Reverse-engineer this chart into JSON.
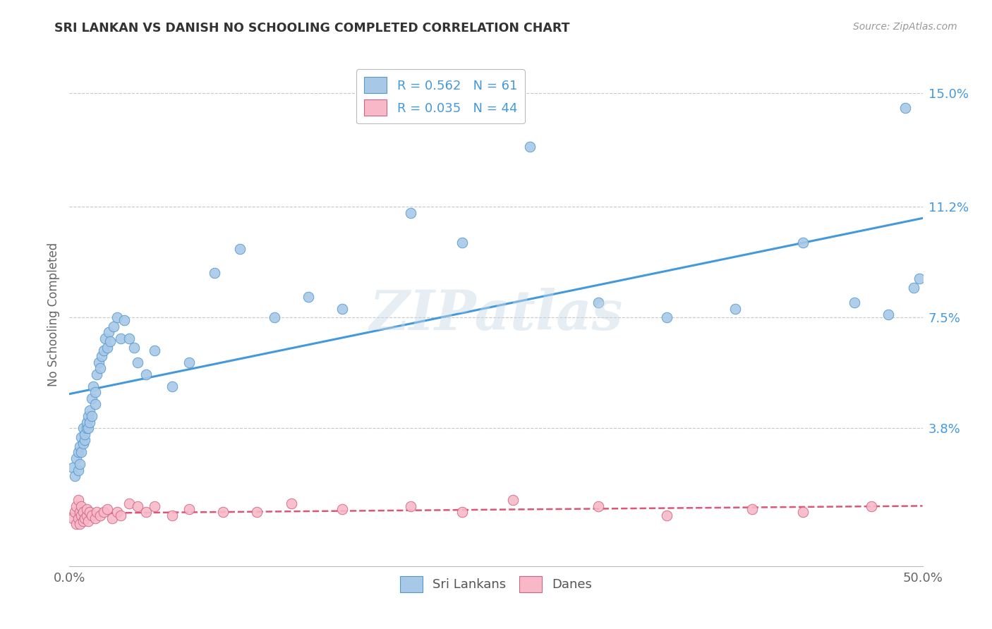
{
  "title": "SRI LANKAN VS DANISH NO SCHOOLING COMPLETED CORRELATION CHART",
  "source": "Source: ZipAtlas.com",
  "ylabel": "No Schooling Completed",
  "xlim": [
    0.0,
    0.5
  ],
  "ylim": [
    -0.008,
    0.16
  ],
  "ytick_positions": [
    0.038,
    0.075,
    0.112,
    0.15
  ],
  "background_color": "#ffffff",
  "grid_color": "#c8c8c8",
  "sri_color": "#a8c8e8",
  "sri_edge": "#5599cc",
  "dan_color": "#f8b8c8",
  "dan_edge": "#cc6688",
  "sri_line_color": "#4499dd",
  "dan_line_color": "#dd5577",
  "legend_sri_R": "0.562",
  "legend_sri_N": "61",
  "legend_dan_R": "0.035",
  "legend_dan_N": "44",
  "watermark": "ZIPatlas",
  "sri_x": [
    0.002,
    0.003,
    0.004,
    0.005,
    0.005,
    0.006,
    0.006,
    0.007,
    0.007,
    0.008,
    0.008,
    0.009,
    0.009,
    0.01,
    0.01,
    0.011,
    0.011,
    0.012,
    0.012,
    0.013,
    0.013,
    0.014,
    0.015,
    0.015,
    0.016,
    0.017,
    0.018,
    0.019,
    0.02,
    0.021,
    0.022,
    0.023,
    0.024,
    0.026,
    0.028,
    0.03,
    0.032,
    0.035,
    0.038,
    0.04,
    0.045,
    0.05,
    0.06,
    0.07,
    0.085,
    0.1,
    0.12,
    0.14,
    0.16,
    0.2,
    0.23,
    0.27,
    0.31,
    0.35,
    0.39,
    0.43,
    0.46,
    0.48,
    0.49,
    0.495,
    0.498
  ],
  "sri_y": [
    0.025,
    0.022,
    0.028,
    0.024,
    0.03,
    0.026,
    0.032,
    0.03,
    0.035,
    0.033,
    0.038,
    0.034,
    0.036,
    0.038,
    0.04,
    0.042,
    0.038,
    0.044,
    0.04,
    0.042,
    0.048,
    0.052,
    0.046,
    0.05,
    0.056,
    0.06,
    0.058,
    0.062,
    0.064,
    0.068,
    0.065,
    0.07,
    0.067,
    0.072,
    0.075,
    0.068,
    0.074,
    0.068,
    0.065,
    0.06,
    0.056,
    0.064,
    0.052,
    0.06,
    0.09,
    0.098,
    0.075,
    0.082,
    0.078,
    0.11,
    0.1,
    0.132,
    0.08,
    0.075,
    0.078,
    0.1,
    0.08,
    0.076,
    0.145,
    0.085,
    0.088
  ],
  "dan_x": [
    0.002,
    0.003,
    0.004,
    0.004,
    0.005,
    0.005,
    0.006,
    0.006,
    0.007,
    0.007,
    0.008,
    0.008,
    0.009,
    0.01,
    0.01,
    0.011,
    0.012,
    0.013,
    0.015,
    0.016,
    0.018,
    0.02,
    0.022,
    0.025,
    0.028,
    0.03,
    0.035,
    0.04,
    0.045,
    0.05,
    0.06,
    0.07,
    0.09,
    0.11,
    0.13,
    0.16,
    0.2,
    0.23,
    0.26,
    0.31,
    0.35,
    0.4,
    0.43,
    0.47
  ],
  "dan_y": [
    0.008,
    0.01,
    0.006,
    0.012,
    0.008,
    0.014,
    0.01,
    0.006,
    0.009,
    0.012,
    0.007,
    0.01,
    0.008,
    0.009,
    0.011,
    0.007,
    0.01,
    0.009,
    0.008,
    0.01,
    0.009,
    0.01,
    0.011,
    0.008,
    0.01,
    0.009,
    0.013,
    0.012,
    0.01,
    0.012,
    0.009,
    0.011,
    0.01,
    0.01,
    0.013,
    0.011,
    0.012,
    0.01,
    0.014,
    0.012,
    0.009,
    0.011,
    0.01,
    0.012
  ]
}
